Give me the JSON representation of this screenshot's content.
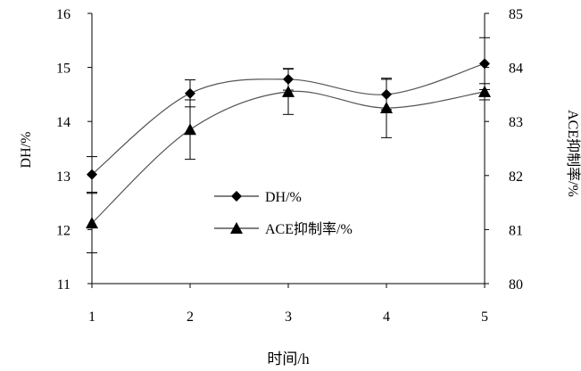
{
  "chart_data": {
    "type": "line",
    "x": [
      1,
      2,
      3,
      4,
      5
    ],
    "xlabel": "时间/h",
    "ylabel_left": "DH/%",
    "ylabel_right": "ACE抑制率/%",
    "ylim_left": [
      11,
      16
    ],
    "ylim_right": [
      80,
      85
    ],
    "xlim": [
      1,
      5
    ],
    "x_ticks": [
      "1",
      "2",
      "3",
      "4",
      "5"
    ],
    "y_ticks_left": [
      "11",
      "12",
      "13",
      "14",
      "15",
      "16"
    ],
    "y_ticks_right": [
      "80",
      "81",
      "82",
      "83",
      "84",
      "85"
    ],
    "legend_position": "center-left",
    "grid": false,
    "series": [
      {
        "name": "DH/%",
        "axis": "left",
        "marker": "diamond",
        "values": [
          13.02,
          14.52,
          14.78,
          14.5,
          15.07
        ],
        "error": [
          0.33,
          0.25,
          0.2,
          0.28,
          0.48
        ]
      },
      {
        "name": "ACE抑制率/%",
        "axis": "right",
        "marker": "triangle",
        "values": [
          81.12,
          82.85,
          83.55,
          83.25,
          83.55
        ],
        "error": [
          0.55,
          0.55,
          0.42,
          0.55,
          0.15
        ]
      }
    ]
  }
}
